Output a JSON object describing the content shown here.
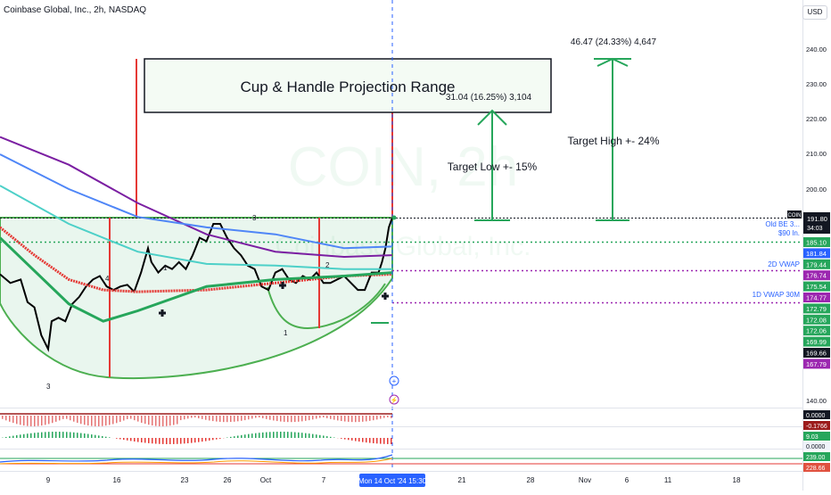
{
  "header": {
    "ticker": "Coinbase Global, Inc., 2h, NASDAQ",
    "currency": "USD"
  },
  "watermark": {
    "symbol": "COIN, 2h",
    "name": "Coinbase Global, Inc."
  },
  "annotations": {
    "title": "Cup & Handle Projection Range",
    "target_low": "Target Low +- 15%",
    "target_high": "Target High +- 24%",
    "low_measure": "31.04 (16.25%) 3,104",
    "high_measure": "46.47 (24.33%) 4,647",
    "lines": {
      "old_be": "Old BE 3...",
      "s90": "$90 ln.",
      "vwap2d": "2D VWAP",
      "vwap1d": "1D VWAP 30M"
    },
    "wave_marks": [
      "4",
      "3",
      "1",
      "3",
      "2",
      "1"
    ]
  },
  "price_axis": {
    "ticks": [
      "240.00",
      "230.00",
      "220.00",
      "210.00",
      "200.00",
      "140.00"
    ],
    "current_ticker": "COIN",
    "current_price": "191.80",
    "countdown": "34:03",
    "price_tags": [
      {
        "text": "185.10",
        "color": "#26a65b"
      },
      {
        "text": "181.84",
        "color": "#2962ff"
      },
      {
        "text": "179.44",
        "color": "#26a65b"
      },
      {
        "text": "176.74",
        "color": "#9c27b0"
      },
      {
        "text": "175.54",
        "color": "#26a65b"
      },
      {
        "text": "174.77",
        "color": "#9c27b0"
      },
      {
        "text": "172.79",
        "color": "#26a65b"
      },
      {
        "text": "172.08",
        "color": "#26a65b"
      },
      {
        "text": "172.06",
        "color": "#26a65b"
      },
      {
        "text": "169.99",
        "color": "#26a65b"
      },
      {
        "text": "169.66",
        "color": "#131722"
      },
      {
        "text": "167.79",
        "color": "#9c27b0"
      }
    ],
    "panel_tags": [
      {
        "text": "0.0000",
        "color": "#131722"
      },
      {
        "text": "-0.1766",
        "color": "#9c1c1c"
      },
      {
        "text": "9.03",
        "color": "#26a65b"
      },
      {
        "text": "0.0000",
        "color": "#ffffff"
      },
      {
        "text": "239.00",
        "color": "#26a65b"
      },
      {
        "text": "228.66",
        "color": "#e0513f"
      }
    ]
  },
  "time_axis": {
    "labels": [
      "9",
      "16",
      "23",
      "26",
      "Oct",
      "7",
      "21",
      "28",
      "Nov",
      "6",
      "11",
      "18"
    ],
    "crosshair_label": "Mon 14 Oct '24  15:30"
  },
  "colors": {
    "up": "#26a65b",
    "down": "#e53935",
    "accent": "#2962ff",
    "purple": "#9c27b0"
  },
  "chart_data": {
    "type": "line",
    "title": "Coinbase Global, Inc., 2h, NASDAQ",
    "xlabel": "",
    "ylabel": "",
    "ylim": [
      140,
      245
    ],
    "grid": false,
    "series": [
      {
        "name": "",
        "color": "#000000",
        "points": [
          [
            0,
            175.5
          ],
          [
            3,
            173
          ],
          [
            6,
            174
          ],
          [
            8,
            167.5
          ],
          [
            10,
            166
          ],
          [
            12,
            158
          ],
          [
            14,
            154
          ],
          [
            15,
            162
          ],
          [
            17,
            163
          ],
          [
            19,
            162
          ],
          [
            21,
            167
          ],
          [
            23,
            169
          ],
          [
            25,
            172
          ],
          [
            27,
            174
          ],
          [
            29,
            175
          ],
          [
            31,
            172
          ],
          [
            33,
            171
          ],
          [
            35,
            172
          ],
          [
            37,
            172.5
          ],
          [
            39,
            170.5
          ],
          [
            41,
            176
          ],
          [
            43,
            183
          ],
          [
            44,
            179
          ],
          [
            46,
            176
          ],
          [
            48,
            178
          ],
          [
            50,
            177
          ],
          [
            52,
            179
          ],
          [
            54,
            177
          ],
          [
            56,
            181
          ],
          [
            58,
            186
          ],
          [
            60,
            185
          ],
          [
            62,
            190
          ],
          [
            64,
            190
          ],
          [
            66,
            186
          ],
          [
            68,
            183
          ],
          [
            70,
            181
          ],
          [
            72,
            178
          ],
          [
            74,
            177
          ],
          [
            76,
            172
          ],
          [
            78,
            171
          ],
          [
            80,
            176
          ],
          [
            82,
            177
          ],
          [
            84,
            174
          ],
          [
            86,
            173
          ],
          [
            88,
            175
          ],
          [
            90,
            174
          ],
          [
            92,
            176
          ],
          [
            94,
            173
          ],
          [
            96,
            173
          ],
          [
            98,
            174
          ],
          [
            100,
            175
          ],
          [
            102,
            173
          ],
          [
            104,
            171
          ],
          [
            106,
            171
          ],
          [
            108,
            176
          ],
          [
            110,
            176
          ],
          [
            111,
            179
          ],
          [
            112,
            183
          ],
          [
            113,
            189
          ],
          [
            114,
            191.8
          ]
        ]
      },
      {
        "name": "",
        "color": "#7b1fa2",
        "points": [
          [
            0,
            215
          ],
          [
            20,
            207
          ],
          [
            40,
            196
          ],
          [
            60,
            187
          ],
          [
            80,
            182
          ],
          [
            100,
            180.5
          ],
          [
            114,
            181
          ]
        ]
      },
      {
        "name": "",
        "color": "#4f86f7",
        "points": [
          [
            0,
            210
          ],
          [
            20,
            200
          ],
          [
            40,
            192
          ],
          [
            60,
            189
          ],
          [
            80,
            187
          ],
          [
            100,
            183
          ],
          [
            114,
            183.5
          ]
        ]
      },
      {
        "name": "",
        "color": "#4dd0c8",
        "points": [
          [
            0,
            201
          ],
          [
            20,
            190
          ],
          [
            40,
            182
          ],
          [
            60,
            178.5
          ],
          [
            80,
            178
          ],
          [
            100,
            177
          ],
          [
            114,
            177
          ]
        ]
      },
      {
        "name": "",
        "color": "#e53935",
        "points": [
          [
            0,
            189
          ],
          [
            10,
            181
          ],
          [
            20,
            174
          ],
          [
            30,
            171
          ],
          [
            40,
            170.5
          ],
          [
            60,
            171
          ],
          [
            80,
            173
          ],
          [
            100,
            175
          ],
          [
            114,
            175.5
          ]
        ]
      },
      {
        "name": "",
        "color": "#26a65b",
        "points": [
          [
            0,
            186
          ],
          [
            20,
            167
          ],
          [
            30,
            162
          ],
          [
            40,
            165
          ],
          [
            60,
            172
          ],
          [
            80,
            174
          ],
          [
            100,
            175
          ],
          [
            114,
            176
          ]
        ]
      }
    ]
  }
}
